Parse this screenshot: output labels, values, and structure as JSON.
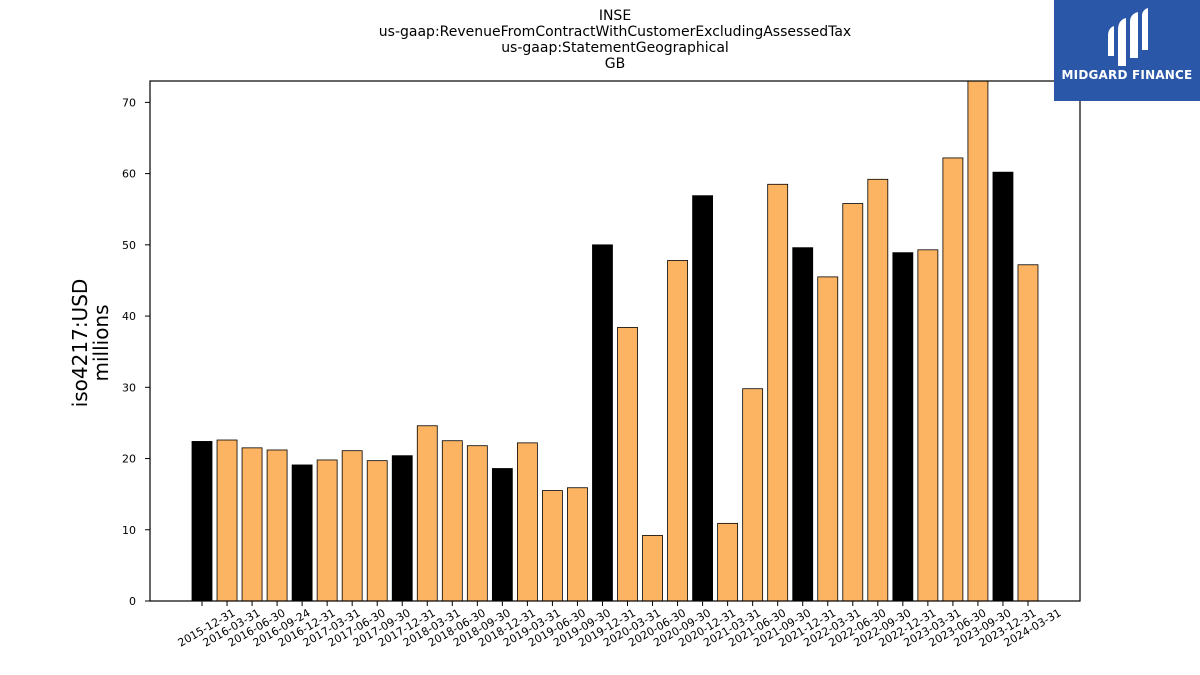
{
  "chart_data": {
    "type": "bar",
    "title_lines": [
      "INSE",
      "us-gaap:RevenueFromContractWithCustomerExcludingAssessedTax",
      "us-gaap:StatementGeographical",
      "GB"
    ],
    "ylabel_lines": [
      "iso4217:USD",
      "millions"
    ],
    "xlabel": "",
    "ylim": [
      0,
      73
    ],
    "yticks": [
      0,
      10,
      20,
      30,
      40,
      50,
      60,
      70
    ],
    "grid": false,
    "colors": {
      "annual": "#000000",
      "quarterly": "#fdb462",
      "edge": "#000000"
    },
    "categories": [
      "2015-12-31",
      "2016-03-31",
      "2016-06-30",
      "2016-09-24",
      "2016-12-31",
      "2017-03-31",
      "2017-06-30",
      "2017-09-30",
      "2017-12-31",
      "2018-03-31",
      "2018-06-30",
      "2018-09-30",
      "2018-12-31",
      "2019-03-31",
      "2019-06-30",
      "2019-09-30",
      "2019-12-31",
      "2020-03-31",
      "2020-06-30",
      "2020-09-30",
      "2020-12-31",
      "2021-03-31",
      "2021-06-30",
      "2021-09-30",
      "2021-12-31",
      "2022-03-31",
      "2022-06-30",
      "2022-09-30",
      "2022-12-31",
      "2023-03-31",
      "2023-06-30",
      "2023-09-30",
      "2023-12-31",
      "2024-03-31"
    ],
    "values": [
      22.4,
      22.6,
      21.5,
      21.2,
      19.1,
      19.8,
      21.1,
      19.7,
      20.4,
      24.6,
      22.5,
      21.8,
      18.6,
      22.2,
      15.5,
      15.9,
      50.0,
      38.4,
      9.2,
      47.8,
      56.9,
      10.9,
      29.8,
      58.5,
      49.6,
      45.5,
      55.8,
      59.2,
      48.9,
      49.3,
      62.2,
      73.0,
      60.2,
      47.2
    ],
    "annual_flags": [
      true,
      false,
      false,
      false,
      true,
      false,
      false,
      false,
      true,
      false,
      false,
      false,
      true,
      false,
      false,
      false,
      true,
      false,
      false,
      false,
      true,
      false,
      false,
      false,
      true,
      false,
      false,
      false,
      true,
      false,
      false,
      false,
      true,
      false
    ]
  },
  "logo": {
    "text": "MIDGARD FINANCE",
    "icon": "midgard-logo-icon"
  }
}
